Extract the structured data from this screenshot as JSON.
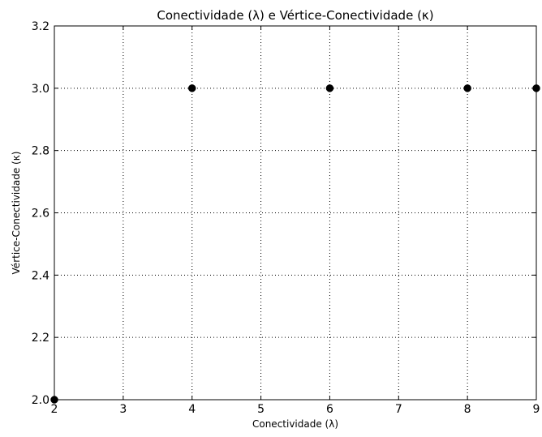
{
  "chart_data": {
    "type": "scatter",
    "title": "Conectividade (λ) e Vértice-Conectividade (κ)",
    "xlabel": "Conectividade (λ)",
    "ylabel": "Vértice-Conectividade (κ)",
    "xlim": [
      2,
      9
    ],
    "ylim": [
      2.0,
      3.2
    ],
    "xticks": [
      2,
      3,
      4,
      5,
      6,
      7,
      8,
      9
    ],
    "xtick_labels": [
      "2",
      "3",
      "4",
      "5",
      "6",
      "7",
      "8",
      "9"
    ],
    "yticks": [
      2.0,
      2.2,
      2.4,
      2.6,
      2.8,
      3.0,
      3.2
    ],
    "ytick_labels": [
      "2.0",
      "2.2",
      "2.4",
      "2.6",
      "2.8",
      "3.0",
      "3.2"
    ],
    "grid": true,
    "marker_color": "#000000",
    "points": [
      {
        "x": 2,
        "y": 2.0
      },
      {
        "x": 4,
        "y": 3.0
      },
      {
        "x": 6,
        "y": 3.0
      },
      {
        "x": 8,
        "y": 3.0
      },
      {
        "x": 9,
        "y": 3.0
      }
    ]
  }
}
